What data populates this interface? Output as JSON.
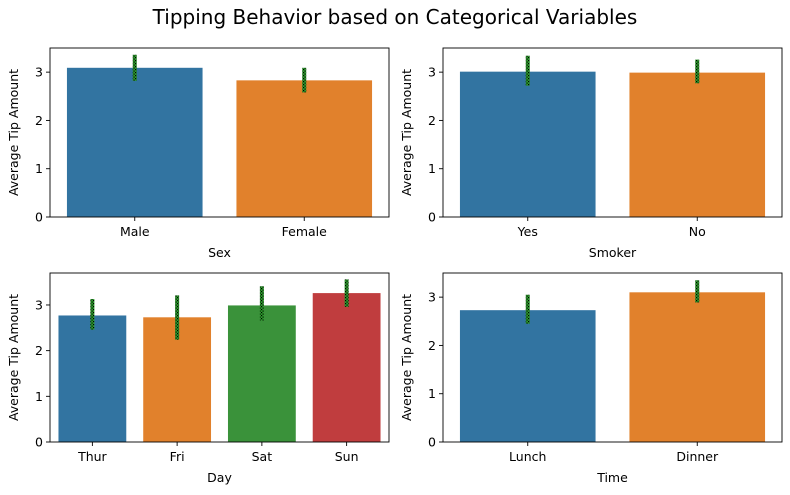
{
  "suptitle": "Tipping Behavior based on Categorical Variables",
  "colors": {
    "blue": "#3274a1",
    "orange": "#e1812c",
    "green": "#3a923a",
    "red": "#c03d3e",
    "errorbar": "#2ca02c",
    "errorbar_hatch": "#000000",
    "axes": "#000000"
  },
  "chart_data": [
    {
      "type": "bar",
      "xlabel": "Sex",
      "ylabel": "Average Tip Amount",
      "categories": [
        "Male",
        "Female"
      ],
      "values": [
        3.09,
        2.83
      ],
      "ci": [
        [
          2.82,
          3.36
        ],
        [
          2.58,
          3.09
        ]
      ],
      "colors": [
        "blue",
        "orange"
      ],
      "ylim": [
        0,
        3.5
      ],
      "yticks": [
        0,
        1,
        2,
        3
      ]
    },
    {
      "type": "bar",
      "xlabel": "Smoker",
      "ylabel": "Average Tip Amount",
      "categories": [
        "Yes",
        "No"
      ],
      "values": [
        3.01,
        2.99
      ],
      "ci": [
        [
          2.72,
          3.34
        ],
        [
          2.77,
          3.26
        ]
      ],
      "colors": [
        "blue",
        "orange"
      ],
      "ylim": [
        0,
        3.5
      ],
      "yticks": [
        0,
        1,
        2,
        3
      ]
    },
    {
      "type": "bar",
      "xlabel": "Day",
      "ylabel": "Average Tip Amount",
      "categories": [
        "Thur",
        "Fri",
        "Sat",
        "Sun"
      ],
      "values": [
        2.77,
        2.73,
        2.99,
        3.26
      ],
      "ci": [
        [
          2.46,
          3.13
        ],
        [
          2.24,
          3.21
        ],
        [
          2.66,
          3.41
        ],
        [
          2.96,
          3.56
        ]
      ],
      "colors": [
        "blue",
        "orange",
        "green",
        "red"
      ],
      "ylim": [
        0,
        3.7
      ],
      "yticks": [
        0,
        1,
        2,
        3
      ]
    },
    {
      "type": "bar",
      "xlabel": "Time",
      "ylabel": "Average Tip Amount",
      "categories": [
        "Lunch",
        "Dinner"
      ],
      "values": [
        2.73,
        3.1
      ],
      "ci": [
        [
          2.45,
          3.05
        ],
        [
          2.89,
          3.35
        ]
      ],
      "colors": [
        "blue",
        "orange"
      ],
      "ylim": [
        0,
        3.5
      ],
      "yticks": [
        0,
        1,
        2,
        3
      ]
    }
  ]
}
